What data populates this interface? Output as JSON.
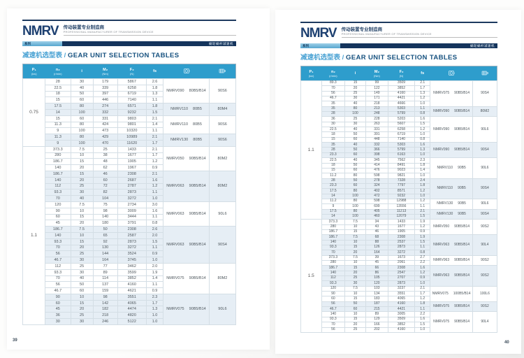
{
  "brand": {
    "logo": "NMRV",
    "tagline_cn": "传动装置专业制造商",
    "tagline_en": "PROFESSIONAL MANUFACTURER OF TRANSMISSION DEVICE",
    "series_label": "系列",
    "product_label": "蜗轮蜗杆减速机"
  },
  "section_title": {
    "cn": "减速机选型表",
    "sep": "/",
    "en": "GEAR UNIT SELECTION TABLES"
  },
  "colors": {
    "header_blue": "#2e9dcc",
    "navy": "#14345c",
    "shade": "#e6eef5",
    "title_cn": "#4ba3d4",
    "title_en": "#16517f"
  },
  "table_headers": [
    {
      "sym": "P₁",
      "unit": "(kw)"
    },
    {
      "sym": "n₂",
      "unit": "(r/min)"
    },
    {
      "sym": "i",
      "unit": ""
    },
    {
      "sym": "M₂",
      "unit": "(Nm)"
    },
    {
      "sym": "F₂",
      "unit": "(N)"
    },
    {
      "sym": "fs",
      "unit": ""
    },
    {
      "icon": "reducer-icon"
    },
    {
      "icon": "motor-icon"
    }
  ],
  "pages": [
    {
      "page_number": "39",
      "groups": [
        {
          "power": "0.75",
          "blocks": [
            {
              "model": "NMRV090",
              "flange": "80B5/B14",
              "motor": "90S6",
              "rows": [
                [
                  "28",
                  "30",
                  "179",
                  "5867",
                  "2.6"
                ],
                [
                  "22.5",
                  "40",
                  "339",
                  "6258",
                  "1.8"
                ],
                [
                  "18",
                  "50",
                  "397",
                  "6719",
                  "1.3"
                ],
                [
                  "15",
                  "60",
                  "446",
                  "7140",
                  "1.1"
                ]
              ]
            },
            {
              "model": "NMRV110",
              "flange": "80B5",
              "motor": "80M4",
              "rows": [
                [
                  "17.5",
                  "80",
                  "274",
                  "6571",
                  "1.8"
                ],
                [
                  "14",
                  "100",
                  "332",
                  "9232",
                  "1.5"
                ]
              ]
            },
            {
              "model": "NMRV110",
              "flange": "80B5",
              "motor": "90S6",
              "rows": [
                [
                  "15",
                  "60",
                  "331",
                  "9803",
                  "2.1"
                ],
                [
                  "11.3",
                  "80",
                  "424",
                  "9801",
                  "1.4"
                ],
                [
                  "9",
                  "100",
                  "473",
                  "10320",
                  "1.1"
                ]
              ]
            },
            {
              "model": "NMRV130",
              "flange": "80B5",
              "motor": "90S6",
              "rows": [
                [
                  "11.3",
                  "80",
                  "429",
                  "10989",
                  "2.1"
                ],
                [
                  "9",
                  "100",
                  "470",
                  "11620",
                  "1.7"
                ]
              ]
            }
          ]
        },
        {
          "power": "1.1",
          "blocks": [
            {
              "model": "NMRV050",
              "flange": "90B5/B14",
              "motor": "80M2",
              "rows": [
                [
                  "373.3",
                  "7.5",
                  "25",
                  "1433",
                  "2.1"
                ],
                [
                  "280",
                  "10",
                  "38",
                  "1677",
                  "1.7"
                ],
                [
                  "186.7",
                  "15",
                  "48",
                  "1905",
                  "1.2"
                ],
                [
                  "140",
                  "20",
                  "62",
                  "1967",
                  "0.9"
                ]
              ]
            },
            {
              "model": "NMRV063",
              "flange": "90B5/B14",
              "motor": "80M2",
              "rows": [
                [
                  "186.7",
                  "15",
                  "46",
                  "2308",
                  "2.1"
                ],
                [
                  "140",
                  "20",
                  "60",
                  "2687",
                  "1.6"
                ],
                [
                  "112",
                  "25",
                  "72",
                  "2787",
                  "1.2"
                ],
                [
                  "93.3",
                  "30",
                  "82",
                  "2873",
                  "1.1"
                ],
                [
                  "70",
                  "40",
                  "104",
                  "3272",
                  "1.0"
                ]
              ]
            },
            {
              "model": "NMRV063",
              "flange": "90B5/B14",
              "motor": "90L6",
              "rows": [
                [
                  "120",
                  "7.5",
                  "75",
                  "2734",
                  "3.0"
                ],
                [
                  "90",
                  "10",
                  "98",
                  "3009",
                  "1.6"
                ],
                [
                  "60",
                  "15",
                  "140",
                  "3444",
                  "1.1"
                ],
                [
                  "45",
                  "20",
                  "180",
                  "3791",
                  "0.8"
                ]
              ]
            },
            {
              "model": "NMRV063",
              "flange": "90B5/B14",
              "motor": "90S4",
              "rows": [
                [
                  "186.7",
                  "7.5",
                  "50",
                  "2308",
                  "2.6"
                ],
                [
                  "140",
                  "10",
                  "65",
                  "2587",
                  "2.0"
                ],
                [
                  "93.3",
                  "15",
                  "92",
                  "2873",
                  "1.5"
                ],
                [
                  "70",
                  "20",
                  "130",
                  "3272",
                  "1.1"
                ],
                [
                  "56",
                  "25",
                  "144",
                  "3524",
                  "0.9"
                ],
                [
                  "46.7",
                  "30",
                  "164",
                  "3745",
                  "1.0"
                ]
              ]
            },
            {
              "model": "NMRV075",
              "flange": "90B5/B14",
              "motor": "80M2",
              "rows": [
                [
                  "112",
                  "25",
                  "77",
                  "3462",
                  "2.0"
                ],
                [
                  "93.3",
                  "30",
                  "89",
                  "3599",
                  "1.9"
                ],
                [
                  "70",
                  "40",
                  "114",
                  "3852",
                  "1.4"
                ],
                [
                  "56",
                  "50",
                  "137",
                  "4160",
                  "1.1"
                ],
                [
                  "46.7",
                  "60",
                  "159",
                  "4621",
                  "0.9"
                ]
              ]
            },
            {
              "model": "NMRV075",
              "flange": "90B5/B14",
              "motor": "90L6",
              "rows": [
                [
                  "90",
                  "10",
                  "98",
                  "3551",
                  "2.3"
                ],
                [
                  "60",
                  "15",
                  "142",
                  "4065",
                  "1.7"
                ],
                [
                  "45",
                  "20",
                  "182",
                  "4474",
                  "1.3"
                ],
                [
                  "36",
                  "25",
                  "218",
                  "4820",
                  "1.0"
                ],
                [
                  "30",
                  "30",
                  "246",
                  "5122",
                  "1.0"
                ]
              ]
            }
          ]
        }
      ]
    },
    {
      "page_number": "40",
      "groups": [
        {
          "power": "1.1",
          "blocks": [
            {
              "model": "NMRV075",
              "flange": "90B5/B14",
              "motor": "90S4",
              "rows": [
                [
                  "89.3",
                  "15",
                  "99",
                  "3509",
                  "2.1"
                ],
                [
                  "70",
                  "20",
                  "122",
                  "3852",
                  "1.7"
                ],
                [
                  "56",
                  "25",
                  "149",
                  "4160",
                  "1.3"
                ],
                [
                  "46.7",
                  "30",
                  "171",
                  "4421",
                  "1.2"
                ],
                [
                  "35",
                  "40",
                  "218",
                  "4666",
                  "1.0"
                ]
              ]
            },
            {
              "model": "NMRV090",
              "flange": "90B5/B14",
              "motor": "80M2",
              "rows": [
                [
                  "35",
                  "80",
                  "213",
                  "5303",
                  "1.1"
                ],
                [
                  "28",
                  "100",
                  "248",
                  "5799",
                  "0.8"
                ]
              ]
            },
            {
              "model": "NMRV090",
              "flange": "90B5/B14",
              "motor": "90L6",
              "rows": [
                [
                  "36",
                  "25",
                  "228",
                  "5203",
                  "1.6"
                ],
                [
                  "30",
                  "30",
                  "263",
                  "5607",
                  "1.5"
                ],
                [
                  "22.5",
                  "40",
                  "331",
                  "6258",
                  "1.2"
                ],
                [
                  "18",
                  "50",
                  "391",
                  "6719",
                  "1.0"
                ],
                [
                  "15",
                  "60",
                  "448",
                  "7140",
                  "0.8"
                ]
              ]
            },
            {
              "model": "NMRV090",
              "flange": "90B5/B14",
              "motor": "90S4",
              "rows": [
                [
                  "35",
                  "40",
                  "332",
                  "5303",
                  "1.6"
                ],
                [
                  "28",
                  "50",
                  "366",
                  "5799",
                  "1.3"
                ],
                [
                  "23.3",
                  "60",
                  "398",
                  "6163",
                  "1.0"
                ]
              ]
            },
            {
              "model": "NMRV110",
              "flange": "90B5",
              "motor": "90L6",
              "rows": [
                [
                  "22.5",
                  "40",
                  "345",
                  "7562",
                  "2.3"
                ],
                [
                  "18",
                  "50",
                  "414",
                  "8491",
                  "1.8"
                ],
                [
                  "15",
                  "60",
                  "476",
                  "9023",
                  "1.4"
                ],
                [
                  "11.2",
                  "80",
                  "598",
                  "9821",
                  "1.0"
                ]
              ]
            },
            {
              "model": "NMRV110",
              "flange": "90B5",
              "motor": "90S4",
              "rows": [
                [
                  "28",
                  "50",
                  "278",
                  "7328",
                  "2.4"
                ],
                [
                  "23.3",
                  "60",
                  "324",
                  "7797",
                  "1.8"
                ],
                [
                  "17.5",
                  "80",
                  "402",
                  "8571",
                  "1.2"
                ],
                [
                  "14",
                  "100",
                  "472",
                  "9232",
                  "1.0"
                ]
              ]
            },
            {
              "model": "NMRV130",
              "flange": "90B5",
              "motor": "90L6",
              "rows": [
                [
                  "11.2",
                  "80",
                  "598",
                  "12988",
                  "1.2"
                ],
                [
                  "9",
                  "100",
                  "699",
                  "13556",
                  "1.1"
                ]
              ]
            },
            {
              "model": "NMRV130",
              "flange": "90B5",
              "motor": "90S4",
              "rows": [
                [
                  "17.5",
                  "80",
                  "405",
                  "11213",
                  "2.1"
                ],
                [
                  "14",
                  "100",
                  "460",
                  "12079",
                  "1.5"
                ]
              ]
            }
          ]
        },
        {
          "power": "1.5",
          "blocks": [
            {
              "model": "NMRV050",
              "flange": "90B5/B14",
              "motor": "90S2",
              "rows": [
                [
                  "373.3",
                  "7.5",
                  "34",
                  "1433",
                  "1.9"
                ],
                [
                  "280",
                  "10",
                  "43",
                  "1677",
                  "1.2"
                ],
                [
                  "186.7",
                  "15",
                  "46",
                  "1905",
                  "0.9"
                ]
              ]
            },
            {
              "model": "NMRV063",
              "flange": "90B5/B14",
              "motor": "90L4",
              "rows": [
                [
                  "186.7",
                  "7.5",
                  "68",
                  "2308",
                  "1.9"
                ],
                [
                  "140",
                  "10",
                  "88",
                  "2537",
                  "1.5"
                ],
                [
                  "93.3",
                  "15",
                  "126",
                  "2873",
                  "1.1"
                ],
                [
                  "70",
                  "20",
                  "164",
                  "3272",
                  "0.8"
                ]
              ]
            },
            {
              "model": "NMRV063",
              "flange": "90B5/B14",
              "motor": "90S2",
              "rows": [
                [
                  "373.3",
                  "7.5",
                  "39",
                  "1673",
                  "2.7"
                ],
                [
                  "280",
                  "10",
                  "45",
                  "2061",
                  "2.2"
                ]
              ]
            },
            {
              "model": "NMRV063",
              "flange": "90B5/B14",
              "motor": "90S2",
              "rows": [
                [
                  "186.7",
                  "15",
                  "66",
                  "2308",
                  "1.6"
                ],
                [
                  "140",
                  "20",
                  "86",
                  "2547",
                  "1.2"
                ],
                [
                  "112",
                  "25",
                  "105",
                  "2707",
                  "0.9"
                ],
                [
                  "93.3",
                  "30",
                  "120",
                  "2873",
                  "1.0"
                ]
              ]
            },
            {
              "model": "NMRV075",
              "flange": "100B5/B14",
              "motor": "100L6",
              "rows": [
                [
                  "120",
                  "7.5",
                  "103",
                  "3237",
                  "2.1"
                ],
                [
                  "90",
                  "10",
                  "134",
                  "3551",
                  "1.7"
                ],
                [
                  "60",
                  "15",
                  "183",
                  "4065",
                  "1.2"
                ]
              ]
            },
            {
              "model": "NMRV075",
              "flange": "90B5/B14",
              "motor": "90S2",
              "rows": [
                [
                  "56",
                  "50",
                  "187",
                  "4160",
                  "1.8"
                ],
                [
                  "46.7",
                  "60",
                  "215",
                  "4421",
                  "1.1"
                ]
              ]
            },
            {
              "model": "NMRV075",
              "flange": "90B5/B14",
              "motor": "90L4",
              "rows": [
                [
                  "140",
                  "10",
                  "89",
                  "3005",
                  "2.2"
                ],
                [
                  "93.3",
                  "15",
                  "129",
                  "3509",
                  "1.6"
                ],
                [
                  "70",
                  "20",
                  "166",
                  "3852",
                  "1.5"
                ],
                [
                  "56",
                  "25",
                  "202",
                  "4160",
                  "1.0"
                ]
              ]
            }
          ]
        }
      ]
    }
  ]
}
